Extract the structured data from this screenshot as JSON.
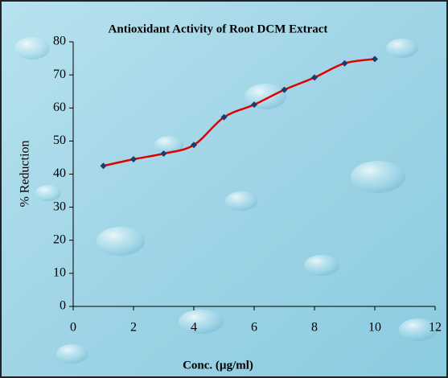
{
  "chart_data": {
    "type": "line",
    "title": "Antioxidant Activity of Root DCM Extract",
    "x_label": "Conc. (µg/ml)",
    "y_label": "% Reduction",
    "x": [
      1,
      2,
      3,
      4,
      5,
      6,
      7,
      8,
      9,
      10
    ],
    "values": [
      42.5,
      44.5,
      46.2,
      48.8,
      57.2,
      61,
      65.5,
      69.2,
      73.5,
      74.8
    ],
    "line_color": "#e00000",
    "marker_color": "#1f3a6e",
    "smooth": true,
    "xlim": [
      0,
      12
    ],
    "xticks": [
      0,
      2,
      4,
      6,
      8,
      10,
      12
    ],
    "ylim": [
      0,
      80
    ],
    "yticks": [
      0,
      10,
      20,
      30,
      40,
      50,
      60,
      70,
      80
    ]
  }
}
